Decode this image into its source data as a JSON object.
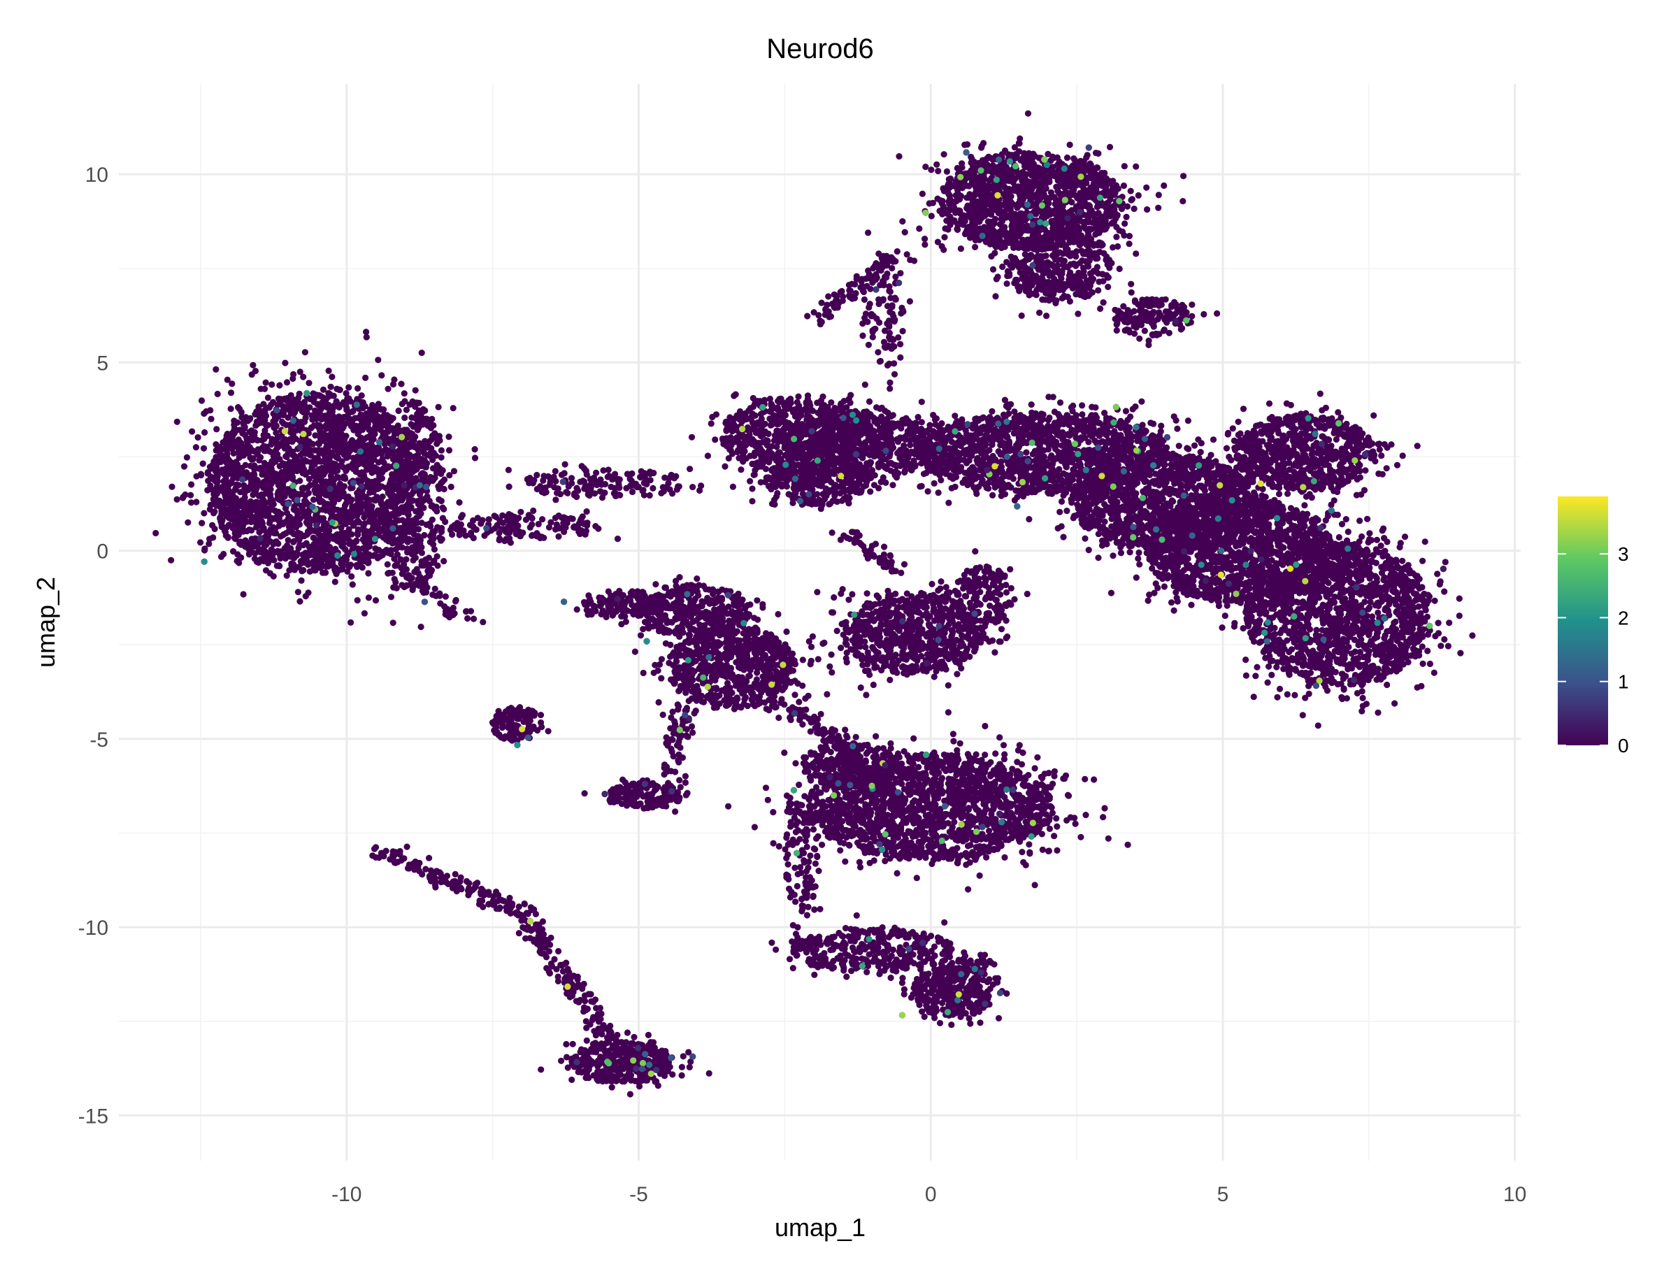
{
  "chart_data": {
    "type": "scatter",
    "title": "Neurod6",
    "xlabel": "umap_1",
    "ylabel": "umap_2",
    "xlim": [
      -13.9,
      10.1
    ],
    "ylim": [
      -16.2,
      12.4
    ],
    "xticks": [
      -10,
      -5,
      0,
      5,
      10
    ],
    "yticks": [
      -15,
      -10,
      -5,
      0,
      5,
      10
    ],
    "xtick_labels": [
      "-10",
      "-5",
      "0",
      "5",
      "10"
    ],
    "ytick_labels": [
      "-15",
      "-10",
      "-5",
      "0",
      "5",
      "10"
    ],
    "grid": true,
    "legend": {
      "type": "colorbar",
      "placement": "right",
      "min": 0,
      "max": 3.9,
      "ticks": [
        0,
        1,
        2,
        3
      ],
      "tick_labels": [
        "0",
        "1",
        "2",
        "3"
      ],
      "colormap": "viridis",
      "colors": [
        "#440154",
        "#3b528b",
        "#21918c",
        "#5ec962",
        "#fde725"
      ]
    },
    "point_color_zero": "#440154",
    "clusters": [
      {
        "cx": -10.5,
        "cy": 1.8,
        "rx": 1.9,
        "ry": 2.4,
        "n": 2400
      },
      {
        "cx": -8.8,
        "cy": 1.5,
        "rx": 0.5,
        "ry": 2.5,
        "n": 300
      },
      {
        "cx": -7.0,
        "cy": 0.6,
        "rx": 1.3,
        "ry": 0.35,
        "n": 140
      },
      {
        "cx": -5.6,
        "cy": 1.8,
        "rx": 1.4,
        "ry": 0.4,
        "n": 150
      },
      {
        "cx": -2.3,
        "cy": 3.1,
        "rx": 1.3,
        "ry": 1.0,
        "n": 650
      },
      {
        "cx": -1.2,
        "cy": 2.8,
        "rx": 1.3,
        "ry": 0.9,
        "n": 550
      },
      {
        "cx": -2.0,
        "cy": 1.8,
        "rx": 0.9,
        "ry": 0.6,
        "n": 250
      },
      {
        "cx": 1.7,
        "cy": 9.3,
        "rx": 1.6,
        "ry": 1.3,
        "n": 1300
      },
      {
        "cx": 2.2,
        "cy": 7.6,
        "rx": 0.9,
        "ry": 1.0,
        "n": 400
      },
      {
        "cx": 3.8,
        "cy": 6.2,
        "rx": 0.7,
        "ry": 0.5,
        "n": 160
      },
      {
        "cx": -0.8,
        "cy": 6.4,
        "rx": 0.35,
        "ry": 1.5,
        "n": 100
      },
      {
        "cx": 1.9,
        "cy": 2.6,
        "rx": 2.1,
        "ry": 1.1,
        "n": 1400
      },
      {
        "cx": 4.0,
        "cy": 1.3,
        "rx": 1.6,
        "ry": 1.3,
        "n": 1200
      },
      {
        "cx": 5.3,
        "cy": 0.0,
        "rx": 1.6,
        "ry": 1.4,
        "n": 1300
      },
      {
        "cx": 6.4,
        "cy": 2.6,
        "rx": 1.2,
        "ry": 1.0,
        "n": 700
      },
      {
        "cx": 7.0,
        "cy": -1.7,
        "rx": 1.6,
        "ry": 1.9,
        "n": 1500
      },
      {
        "cx": -4.1,
        "cy": -1.6,
        "rx": 1.0,
        "ry": 0.7,
        "n": 350
      },
      {
        "cx": -3.4,
        "cy": -3.1,
        "rx": 1.1,
        "ry": 1.1,
        "n": 700
      },
      {
        "cx": -5.2,
        "cy": -1.4,
        "rx": 0.8,
        "ry": 0.35,
        "n": 120
      },
      {
        "cx": -0.3,
        "cy": -2.2,
        "rx": 1.2,
        "ry": 1.1,
        "n": 700
      },
      {
        "cx": 0.9,
        "cy": -1.2,
        "rx": 0.5,
        "ry": 0.8,
        "n": 150
      },
      {
        "cx": -7.1,
        "cy": -4.6,
        "rx": 0.45,
        "ry": 0.45,
        "n": 120
      },
      {
        "cx": -4.9,
        "cy": -6.5,
        "rx": 0.65,
        "ry": 0.35,
        "n": 160
      },
      {
        "cx": 0.0,
        "cy": -6.8,
        "rx": 2.1,
        "ry": 1.4,
        "n": 1700
      },
      {
        "cx": -1.4,
        "cy": -5.7,
        "rx": 0.8,
        "ry": 0.6,
        "n": 250
      },
      {
        "cx": -2.2,
        "cy": -8.0,
        "rx": 0.3,
        "ry": 1.6,
        "n": 120
      },
      {
        "cx": -1.0,
        "cy": -10.6,
        "rx": 1.4,
        "ry": 0.6,
        "n": 350
      },
      {
        "cx": 0.4,
        "cy": -11.7,
        "rx": 0.7,
        "ry": 0.7,
        "n": 300
      },
      {
        "cx": -5.3,
        "cy": -13.6,
        "rx": 0.9,
        "ry": 0.55,
        "n": 400
      }
    ],
    "trails": [
      {
        "x1": -9.5,
        "y1": -7.9,
        "x2": -7.0,
        "y2": -9.6,
        "n": 130
      },
      {
        "x1": -7.0,
        "y1": -9.6,
        "x2": -5.5,
        "y2": -13.0,
        "n": 160
      },
      {
        "x1": -9.0,
        "y1": -0.8,
        "x2": -7.8,
        "y2": -1.8,
        "n": 40
      },
      {
        "x1": -1.9,
        "y1": 6.2,
        "x2": -0.5,
        "y2": 7.9,
        "n": 90
      },
      {
        "x1": 0.1,
        "y1": -11.2,
        "x2": 1.0,
        "y2": -10.9,
        "n": 50
      },
      {
        "x1": -2.7,
        "y1": -4.0,
        "x2": -1.3,
        "y2": -5.2,
        "n": 80
      },
      {
        "x1": -4.2,
        "y1": -4.2,
        "x2": -4.5,
        "y2": -6.0,
        "n": 60
      },
      {
        "x1": -1.5,
        "y1": 0.5,
        "x2": -0.5,
        "y2": -0.6,
        "n": 50
      }
    ],
    "expressing_fraction": 0.012,
    "expression_range": [
      0.3,
      3.9
    ]
  }
}
